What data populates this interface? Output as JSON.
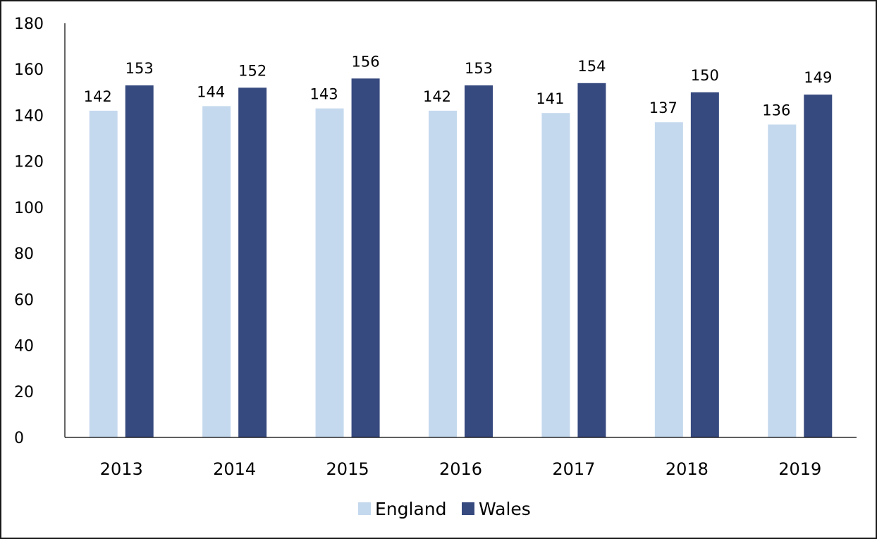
{
  "chart_data": {
    "type": "bar",
    "title": "",
    "xlabel": "",
    "ylabel": "",
    "categories": [
      "2013",
      "2014",
      "2015",
      "2016",
      "2017",
      "2018",
      "2019"
    ],
    "series": [
      {
        "name": "England",
        "values": [
          142,
          144,
          143,
          142,
          141,
          137,
          136
        ],
        "color": "#c5d9ee"
      },
      {
        "name": "Wales",
        "values": [
          153,
          152,
          156,
          153,
          154,
          150,
          149
        ],
        "color": "#374a7f"
      }
    ],
    "ylim": [
      0,
      180
    ],
    "yticks": [
      "0",
      "20",
      "40",
      "60",
      "80",
      "100",
      "120",
      "140",
      "160",
      "180"
    ],
    "grid": false,
    "data_labels": true,
    "legend": "bottom-center"
  }
}
